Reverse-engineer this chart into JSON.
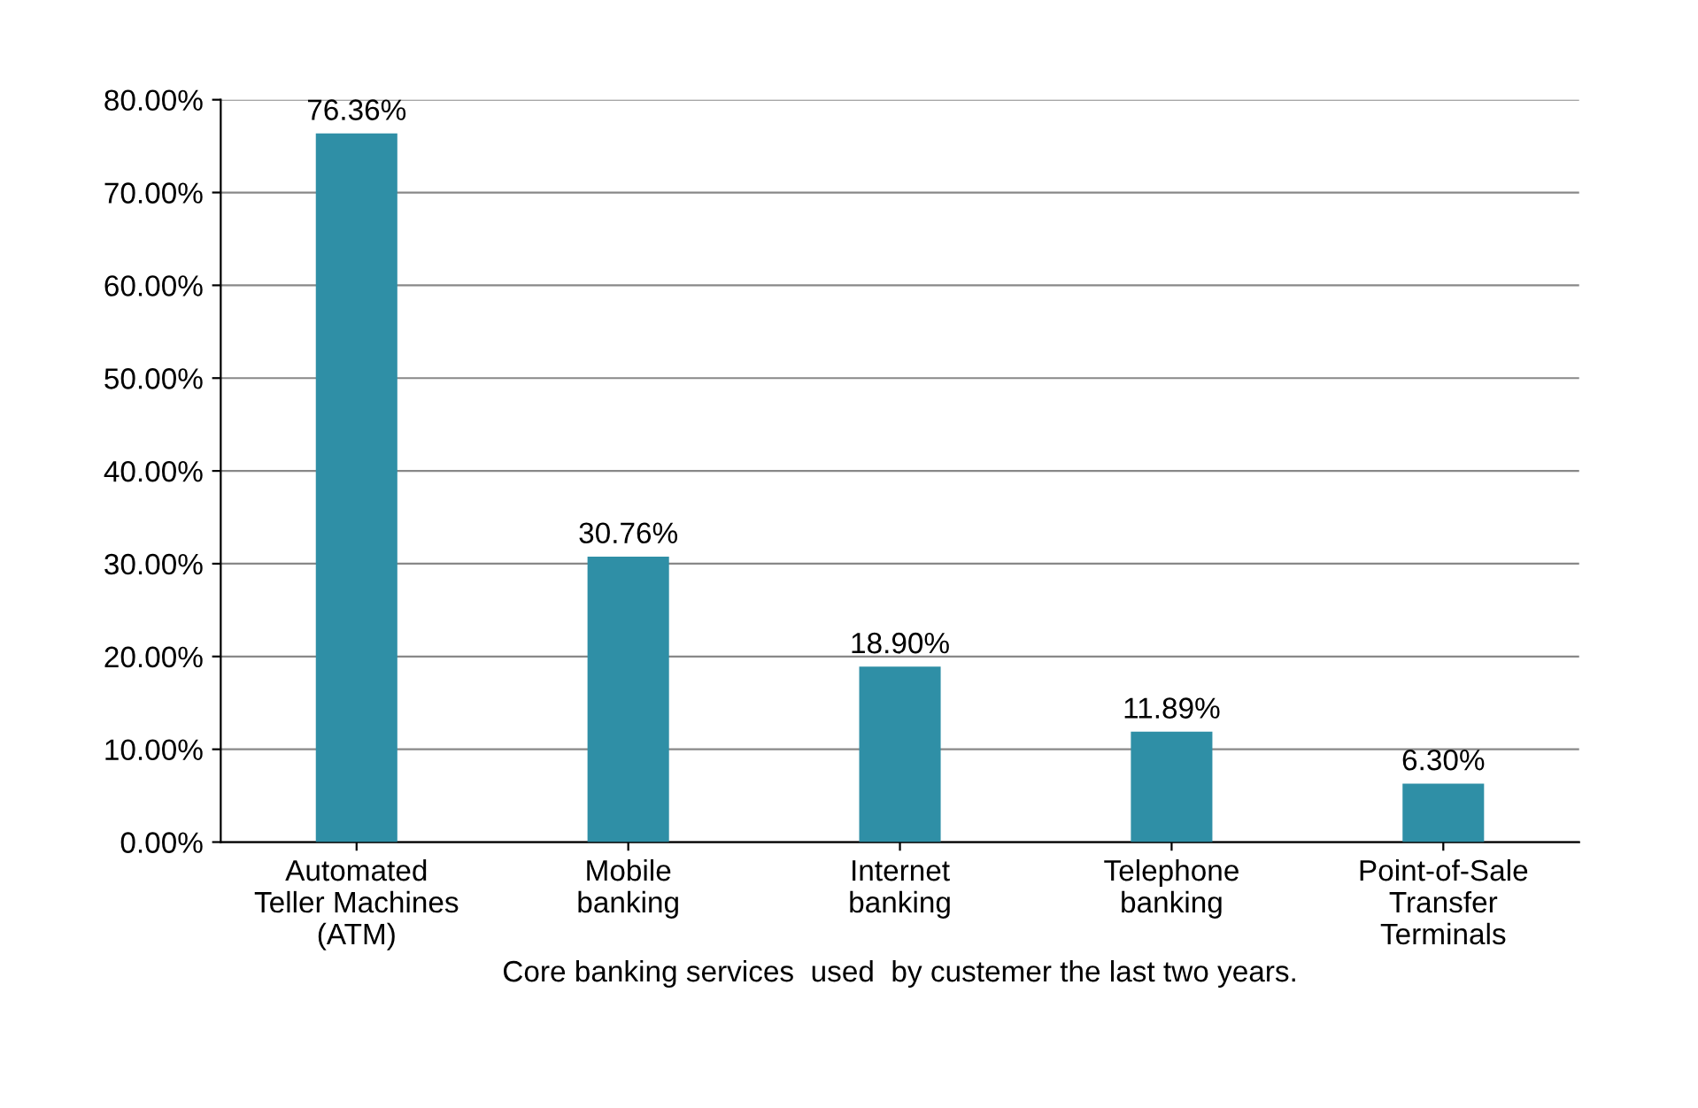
{
  "chart_data": {
    "type": "bar",
    "xlabel": "Core banking services  used  by custemer the last two years.",
    "categories": [
      "Automated\nTeller Machines\n(ATM)",
      "Mobile\nbanking",
      "Internet\nbanking",
      "Telephone\nbanking",
      "Point-of-Sale\nTransfer\nTerminals"
    ],
    "values": [
      76.36,
      30.76,
      18.9,
      11.89,
      6.3
    ],
    "value_labels": [
      "76.36%",
      "30.76%",
      "18.90%",
      "11.89%",
      "6.30%"
    ],
    "color": "#2f8fa6",
    "ylim": [
      0,
      80
    ],
    "yticks": [
      {
        "value": 0,
        "label": "0.00%"
      },
      {
        "value": 10,
        "label": "10.00%"
      },
      {
        "value": 20,
        "label": "20.00%"
      },
      {
        "value": 30,
        "label": "30.00%"
      },
      {
        "value": 40,
        "label": "40.00%"
      },
      {
        "value": 50,
        "label": "50.00%"
      },
      {
        "value": 60,
        "label": "60.00%"
      },
      {
        "value": 70,
        "label": "70.00%"
      },
      {
        "value": 80,
        "label": "80.00%"
      }
    ],
    "grid": "y"
  }
}
